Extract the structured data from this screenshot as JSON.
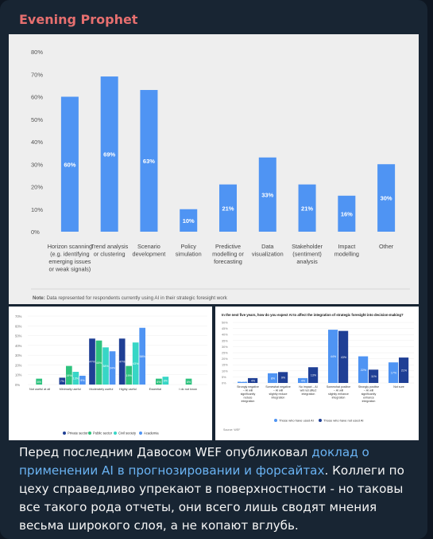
{
  "channel": {
    "name": "Evening Prophet"
  },
  "message": {
    "text_before": "Перед последним Давосом WEF опубликовал ",
    "link_text": "доклад о применении AI в прогнозировании и форсайтах",
    "text_after": ". Коллеги по цеху справедливо упрекают в поверхностности - но таковы все такого рода отчеты, они всего лишь сводят мнения весьма широкого слоя, а не копают вглубь."
  },
  "chart_data": [
    {
      "type": "bar",
      "categories": [
        "Horizon scanning (e.g. identifying emerging issues or weak signals)",
        "Trend analysis or clustering",
        "Scenario development",
        "Policy simulation",
        "Predictive modelling or forecasting",
        "Data visualization",
        "Stakeholder (sentiment) analysis",
        "Impact modelling",
        "Other"
      ],
      "category_lines": [
        [
          "Horizon scanning",
          "(e.g. identifying",
          "emerging issues",
          "or weak signals)"
        ],
        [
          "Trend analysis",
          "or clustering"
        ],
        [
          "Scenario",
          "development"
        ],
        [
          "Policy",
          "simulation"
        ],
        [
          "Predictive",
          "modelling or",
          "forecasting"
        ],
        [
          "Data",
          "visualization"
        ],
        [
          "Stakeholder",
          "(sentiment)",
          "analysis"
        ],
        [
          "Impact",
          "modelling"
        ],
        [
          "Other"
        ]
      ],
      "values": [
        60,
        69,
        63,
        10,
        21,
        33,
        21,
        16,
        30
      ],
      "value_labels": [
        "60%",
        "69%",
        "63%",
        "10%",
        "21%",
        "33%",
        "21%",
        "16%",
        "30%"
      ],
      "ylim": [
        0,
        80
      ],
      "yticks": [
        "0%",
        "10%",
        "20%",
        "30%",
        "40%",
        "50%",
        "60%",
        "70%",
        "80%"
      ],
      "color": "#4f94f3",
      "note_label": "Note:",
      "note": "Data represented for respondents currently using AI in their strategic foresight work"
    },
    {
      "type": "bar",
      "categories": [
        "Not useful at all",
        "Minimally useful",
        "Moderately useful",
        "Highly useful",
        "Essential",
        "I do not know"
      ],
      "series": [
        {
          "name": "Private sector",
          "color": "#1f3f95",
          "values": [
            0,
            7,
            47,
            47,
            0,
            0
          ]
        },
        {
          "name": "Public sector",
          "color": "#2ec27e",
          "values": [
            6,
            19,
            45,
            19,
            6,
            6
          ]
        },
        {
          "name": "Civil society",
          "color": "#37d6c6",
          "values": [
            0,
            13,
            38,
            43,
            8,
            0
          ]
        },
        {
          "name": "Academia",
          "color": "#4f94f3",
          "values": [
            0,
            9,
            34,
            58,
            0,
            0
          ]
        }
      ],
      "value_labels": [
        [
          "",
          "7%",
          "47%",
          "47%",
          "",
          ""
        ],
        [
          "6%",
          "19%",
          "45%",
          "19%",
          "6%",
          "6%"
        ],
        [
          "",
          "13%",
          "38%",
          "43%",
          "8%",
          ""
        ],
        [
          "",
          "9%",
          "34%",
          "58%",
          "",
          ""
        ]
      ],
      "ylim": [
        0,
        70
      ],
      "yticks": [
        "0%",
        "10%",
        "20%",
        "30%",
        "40%",
        "50%",
        "60%",
        "70%"
      ]
    },
    {
      "type": "bar",
      "title": "In the next five years, how do you expect AI to affect the integration of strategic foresight into decision-making?",
      "categories": [
        "Strongly negative – AI will significantly reduce integration",
        "Somewhat negative – AI will slightly reduce integration",
        "No impact – AI will not affect integration",
        "Somewhat positive – AI will slightly enhance integration",
        "Strongly positive – AI will significantly enhance integration",
        "Not sure"
      ],
      "series": [
        {
          "name": "Those who have used AI",
          "color": "#4f94f3",
          "values": [
            1,
            8,
            4,
            44,
            22,
            17
          ]
        },
        {
          "name": "Those who have not used AI",
          "color": "#1f3f95",
          "values": [
            4,
            9,
            13,
            43,
            11,
            21
          ]
        }
      ],
      "value_labels": [
        [
          "1%",
          "8%",
          "4%",
          "44%",
          "22%",
          "17%"
        ],
        [
          "4%",
          "9%",
          "13%",
          "43%",
          "11%",
          "21%"
        ]
      ],
      "ylim": [
        0,
        50
      ],
      "yticks": [
        "0%",
        "5%",
        "10%",
        "15%",
        "20%",
        "25%",
        "30%",
        "35%",
        "40%",
        "45%",
        "50%"
      ],
      "source": "Source: WEF"
    }
  ]
}
